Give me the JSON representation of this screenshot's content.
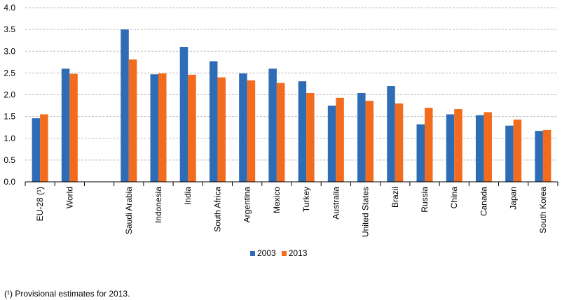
{
  "chart_data": {
    "type": "bar",
    "categories": [
      "EU-28 (¹)",
      "World",
      "",
      "Saudi Arabia",
      "Indonesia",
      "India",
      "South Africa",
      "Argentina",
      "Mexico",
      "Turkey",
      "Australia",
      "United States",
      "Brazil",
      "Russia",
      "China",
      "Canada",
      "Japan",
      "South Korea"
    ],
    "series": [
      {
        "name": "2003",
        "color": "#2e6db5",
        "values": [
          1.46,
          2.6,
          null,
          3.5,
          2.47,
          3.1,
          2.77,
          2.49,
          2.6,
          2.31,
          1.75,
          2.04,
          2.2,
          1.32,
          1.55,
          1.53,
          1.29,
          1.17
        ]
      },
      {
        "name": "2013",
        "color": "#f36b1c",
        "values": [
          1.55,
          2.48,
          null,
          2.81,
          2.49,
          2.46,
          2.4,
          2.33,
          2.27,
          2.04,
          1.93,
          1.86,
          1.8,
          1.7,
          1.67,
          1.6,
          1.43,
          1.19
        ]
      }
    ],
    "yticks": [
      "0.0",
      "0.5",
      "1.0",
      "1.5",
      "2.0",
      "2.5",
      "3.0",
      "3.5",
      "4.0"
    ],
    "ylim": [
      0,
      4
    ],
    "grid": true,
    "legend_position": "bottom-center"
  },
  "legend": {
    "label_2003": "2003",
    "label_2013": "2013"
  },
  "footnote": "(¹) Provisional estimates for 2013."
}
